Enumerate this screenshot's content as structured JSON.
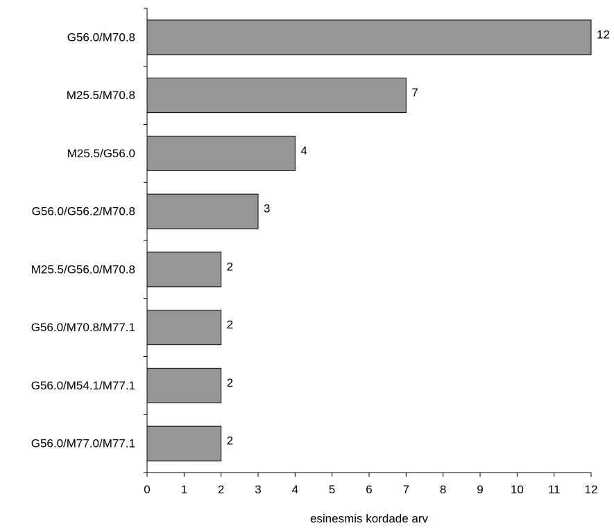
{
  "chart_data": {
    "type": "bar",
    "orientation": "horizontal",
    "categories": [
      "G56.0/M70.8",
      "M25.5/M70.8",
      "M25.5/G56.0",
      "G56.0/G56.2/M70.8",
      "M25.5/G56.0/M70.8",
      "G56.0/M70.8/M77.1",
      "G56.0/M54.1/M77.1",
      "G56.0/M77.0/M77.1"
    ],
    "values": [
      12,
      7,
      4,
      3,
      2,
      2,
      2,
      2
    ],
    "data_labels": [
      "12",
      "7",
      "4",
      "3",
      "2",
      "2",
      "2",
      "2"
    ],
    "title": "",
    "xlabel": "esinesmis kordade arv",
    "ylabel": "",
    "xlim": [
      0,
      12
    ],
    "xticks": [
      "0",
      "1",
      "2",
      "3",
      "4",
      "5",
      "6",
      "7",
      "8",
      "9",
      "10",
      "11",
      "12"
    ],
    "grid": false,
    "legend": "none",
    "bar_color": "#969696"
  }
}
